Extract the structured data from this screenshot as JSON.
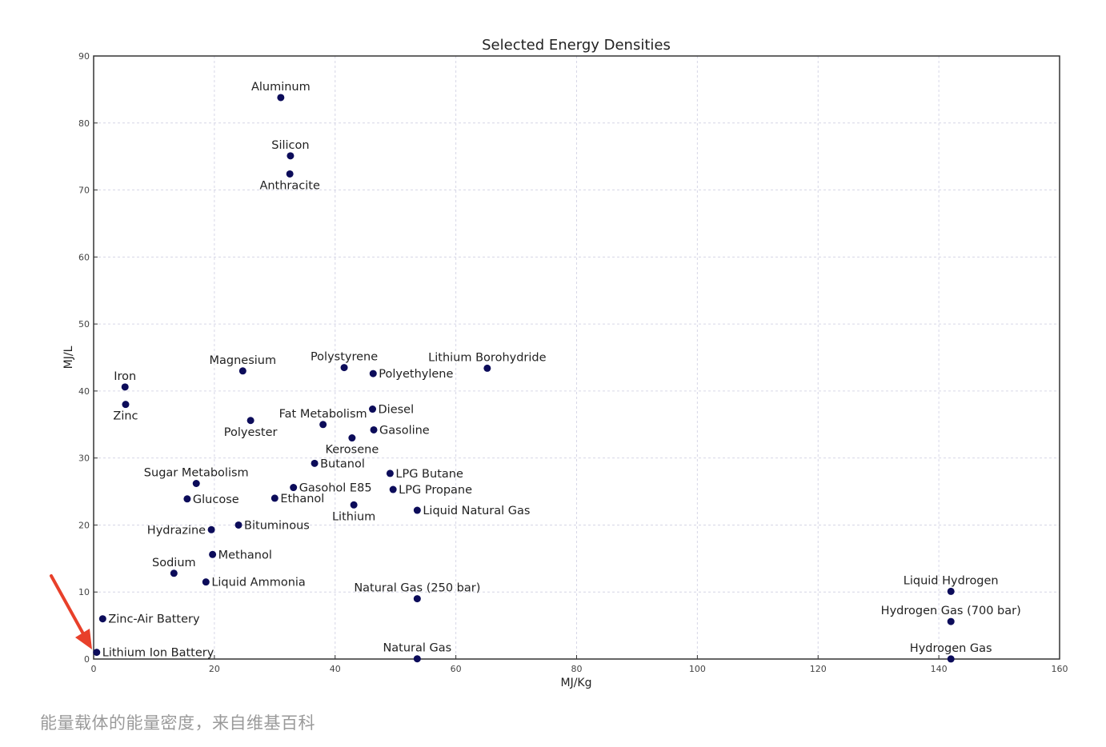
{
  "caption": "能量载体的能量密度，来自维基百科",
  "chart_data": {
    "type": "scatter",
    "title": "Selected Energy Densities",
    "xlabel": "MJ/Kg",
    "ylabel": "MJ/L",
    "xlim": [
      0,
      160
    ],
    "ylim": [
      0,
      90
    ],
    "xticks": [
      0,
      20,
      40,
      60,
      80,
      100,
      120,
      140,
      160
    ],
    "yticks": [
      0,
      10,
      20,
      30,
      40,
      50,
      60,
      70,
      80,
      90
    ],
    "grid": true,
    "point_color": "#0c0c5a",
    "annotation_arrow_color": "#e8402a",
    "points": [
      {
        "label": "Aluminum",
        "x": 31.0,
        "y": 83.8,
        "pos": "above"
      },
      {
        "label": "Silicon",
        "x": 32.6,
        "y": 75.1,
        "pos": "above"
      },
      {
        "label": "Anthracite",
        "x": 32.5,
        "y": 72.4,
        "pos": "below"
      },
      {
        "label": "Magnesium",
        "x": 24.7,
        "y": 43.0,
        "pos": "above"
      },
      {
        "label": "Polystyrene",
        "x": 41.5,
        "y": 43.5,
        "pos": "above"
      },
      {
        "label": "Polyethylene",
        "x": 46.3,
        "y": 42.6,
        "pos": "right"
      },
      {
        "label": "Lithium Borohydride",
        "x": 65.2,
        "y": 43.4,
        "pos": "above"
      },
      {
        "label": "Iron",
        "x": 5.2,
        "y": 40.6,
        "pos": "above"
      },
      {
        "label": "Zinc",
        "x": 5.3,
        "y": 38.0,
        "pos": "below"
      },
      {
        "label": "Diesel",
        "x": 46.2,
        "y": 37.3,
        "pos": "right"
      },
      {
        "label": "Fat Metabolism",
        "x": 38.0,
        "y": 35.0,
        "pos": "above"
      },
      {
        "label": "Polyester",
        "x": 26.0,
        "y": 35.6,
        "pos": "below"
      },
      {
        "label": "Gasoline",
        "x": 46.4,
        "y": 34.2,
        "pos": "right"
      },
      {
        "label": "Kerosene",
        "x": 42.8,
        "y": 33.0,
        "pos": "below"
      },
      {
        "label": "Butanol",
        "x": 36.6,
        "y": 29.2,
        "pos": "right"
      },
      {
        "label": "LPG Butane",
        "x": 49.1,
        "y": 27.7,
        "pos": "right"
      },
      {
        "label": "Sugar Metabolism",
        "x": 17.0,
        "y": 26.2,
        "pos": "above"
      },
      {
        "label": "Gasohol E85",
        "x": 33.1,
        "y": 25.6,
        "pos": "right"
      },
      {
        "label": "LPG Propane",
        "x": 49.6,
        "y": 25.3,
        "pos": "right"
      },
      {
        "label": "Glucose",
        "x": 15.5,
        "y": 23.9,
        "pos": "right"
      },
      {
        "label": "Ethanol",
        "x": 30.0,
        "y": 24.0,
        "pos": "right"
      },
      {
        "label": "Lithium",
        "x": 43.1,
        "y": 23.0,
        "pos": "below"
      },
      {
        "label": "Liquid Natural Gas",
        "x": 53.6,
        "y": 22.2,
        "pos": "right"
      },
      {
        "label": "Bituminous",
        "x": 24.0,
        "y": 20.0,
        "pos": "right"
      },
      {
        "label": "Hydrazine",
        "x": 19.5,
        "y": 19.3,
        "pos": "left"
      },
      {
        "label": "Methanol",
        "x": 19.7,
        "y": 15.6,
        "pos": "right"
      },
      {
        "label": "Sodium",
        "x": 13.3,
        "y": 12.8,
        "pos": "above"
      },
      {
        "label": "Liquid Ammonia",
        "x": 18.6,
        "y": 11.5,
        "pos": "right"
      },
      {
        "label": "Natural Gas (250 bar)",
        "x": 53.6,
        "y": 9.0,
        "pos": "above"
      },
      {
        "label": "Liquid Hydrogen",
        "x": 142.0,
        "y": 10.1,
        "pos": "above"
      },
      {
        "label": "Zinc-Air Battery",
        "x": 1.5,
        "y": 6.0,
        "pos": "right"
      },
      {
        "label": "Hydrogen Gas (700 bar)",
        "x": 142.0,
        "y": 5.6,
        "pos": "above"
      },
      {
        "label": "Lithium Ion Battery",
        "x": 0.5,
        "y": 1.0,
        "pos": "right"
      },
      {
        "label": "Natural Gas",
        "x": 53.6,
        "y": 0.036,
        "pos": "above"
      },
      {
        "label": "Hydrogen Gas",
        "x": 142.0,
        "y": 0.01,
        "pos": "above"
      }
    ]
  }
}
